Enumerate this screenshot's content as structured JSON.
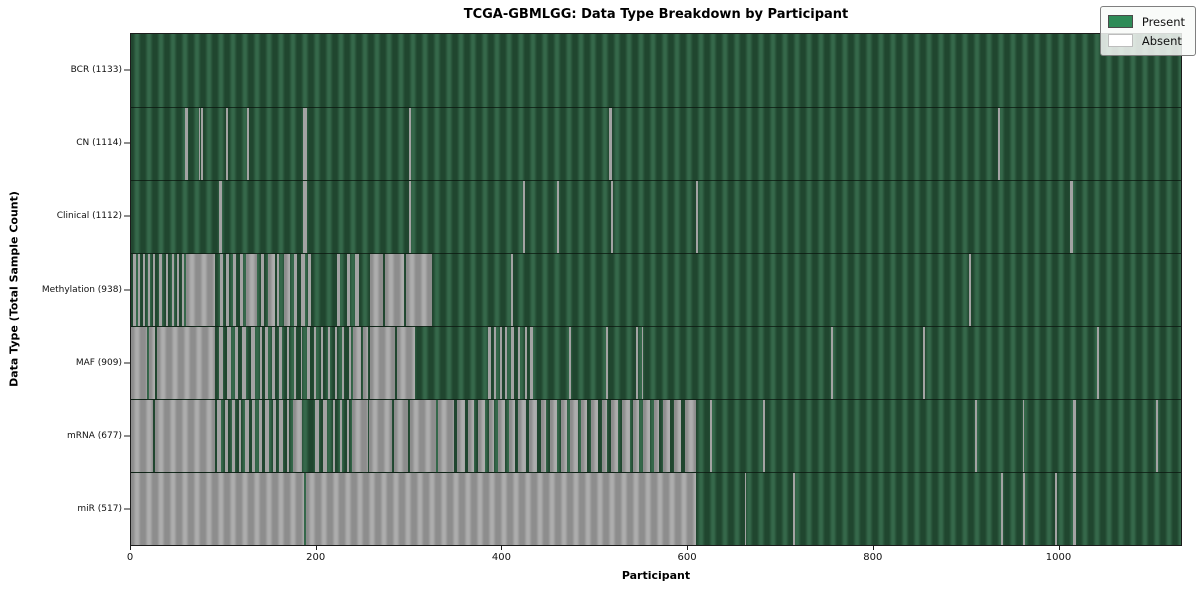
{
  "title": "TCGA-GBMLGG: Data Type Breakdown by Participant",
  "axes": {
    "x_label": "Participant",
    "y_label": "Data Type (Total Sample Count)"
  },
  "legend": {
    "items": [
      {
        "label": "Present",
        "color": "#2e8b57"
      },
      {
        "label": "Absent",
        "color": "#ffffff"
      }
    ]
  },
  "chart_data": {
    "type": "heatmap",
    "title": "TCGA-GBMLGG: Data Type Breakdown by Participant",
    "xlabel": "Participant",
    "ylabel": "Data Type (Total Sample Count)",
    "x_range": [
      0,
      1133
    ],
    "x_ticks": [
      0,
      200,
      400,
      600,
      800,
      1000
    ],
    "legend_entries": [
      "Present",
      "Absent"
    ],
    "present_color": "#2e8b57",
    "absent_color": "#ffffff",
    "grid": false,
    "legend_position": "upper right",
    "rows": [
      {
        "name": "BCR",
        "label": "BCR (1133)",
        "present_count": 1133,
        "absent_runs": []
      },
      {
        "name": "CN",
        "label": "CN (1114)",
        "present_count": 1114,
        "absent_runs": [
          [
            58,
            61
          ],
          [
            73,
            75
          ],
          [
            76,
            78
          ],
          [
            103,
            105
          ],
          [
            125,
            127
          ],
          [
            186,
            190
          ],
          [
            300,
            302
          ],
          [
            516,
            519
          ],
          [
            935,
            938
          ]
        ]
      },
      {
        "name": "Clinical",
        "label": "Clinical (1112)",
        "present_count": 1112,
        "absent_runs": [
          [
            95,
            98
          ],
          [
            186,
            190
          ],
          [
            300,
            302
          ],
          [
            423,
            425
          ],
          [
            460,
            462
          ],
          [
            518,
            520
          ],
          [
            610,
            612
          ],
          [
            1013,
            1016
          ]
        ]
      },
      {
        "name": "Methylation",
        "label": "Methylation (938)",
        "present_count": 938,
        "absent_runs": [
          [
            2,
            5
          ],
          [
            8,
            10
          ],
          [
            13,
            15
          ],
          [
            18,
            20
          ],
          [
            24,
            26
          ],
          [
            30,
            33
          ],
          [
            38,
            40
          ],
          [
            44,
            46
          ],
          [
            50,
            52
          ],
          [
            55,
            57
          ],
          [
            59,
            91
          ],
          [
            96,
            99
          ],
          [
            103,
            106
          ],
          [
            110,
            113
          ],
          [
            118,
            121
          ],
          [
            124,
            136
          ],
          [
            140,
            144
          ],
          [
            148,
            155
          ],
          [
            158,
            160
          ],
          [
            165,
            172
          ],
          [
            176,
            179
          ],
          [
            183,
            188
          ],
          [
            191,
            194
          ],
          [
            222,
            226
          ],
          [
            233,
            236
          ],
          [
            242,
            246
          ],
          [
            258,
            272
          ],
          [
            274,
            295
          ],
          [
            297,
            325
          ],
          [
            410,
            412
          ],
          [
            904,
            906
          ]
        ]
      },
      {
        "name": "MAF",
        "label": "MAF (909)",
        "present_count": 909,
        "absent_runs": [
          [
            0,
            17
          ],
          [
            19,
            26
          ],
          [
            28,
            91
          ],
          [
            95,
            99
          ],
          [
            104,
            108
          ],
          [
            112,
            115
          ],
          [
            120,
            124
          ],
          [
            130,
            134
          ],
          [
            139,
            141
          ],
          [
            145,
            148
          ],
          [
            152,
            155
          ],
          [
            160,
            163
          ],
          [
            168,
            171
          ],
          [
            176,
            178
          ],
          [
            183,
            185
          ],
          [
            190,
            193
          ],
          [
            198,
            200
          ],
          [
            205,
            207
          ],
          [
            213,
            215
          ],
          [
            220,
            222
          ],
          [
            228,
            230
          ],
          [
            235,
            237
          ],
          [
            240,
            248
          ],
          [
            250,
            256
          ],
          [
            258,
            285
          ],
          [
            287,
            306
          ],
          [
            385,
            388
          ],
          [
            392,
            394
          ],
          [
            398,
            400
          ],
          [
            404,
            406
          ],
          [
            410,
            413
          ],
          [
            418,
            420
          ],
          [
            425,
            427
          ],
          [
            431,
            434
          ],
          [
            473,
            475
          ],
          [
            513,
            515
          ],
          [
            545,
            547
          ],
          [
            551,
            553
          ],
          [
            755,
            757
          ],
          [
            855,
            857
          ],
          [
            1042,
            1044
          ]
        ]
      },
      {
        "name": "mRNA",
        "label": "mRNA (677)",
        "present_count": 677,
        "absent_runs": [
          [
            0,
            24
          ],
          [
            26,
            91
          ],
          [
            93,
            97
          ],
          [
            101,
            105
          ],
          [
            109,
            112
          ],
          [
            116,
            119
          ],
          [
            123,
            127
          ],
          [
            131,
            134
          ],
          [
            138,
            141
          ],
          [
            145,
            149
          ],
          [
            153,
            156
          ],
          [
            160,
            164
          ],
          [
            168,
            171
          ],
          [
            175,
            185
          ],
          [
            199,
            203
          ],
          [
            207,
            211
          ],
          [
            218,
            220
          ],
          [
            226,
            228
          ],
          [
            233,
            235
          ],
          [
            238,
            256
          ],
          [
            257,
            282
          ],
          [
            284,
            299
          ],
          [
            301,
            329
          ],
          [
            331,
            348
          ],
          [
            352,
            360
          ],
          [
            364,
            370
          ],
          [
            374,
            382
          ],
          [
            386,
            392
          ],
          [
            396,
            404
          ],
          [
            408,
            414
          ],
          [
            418,
            426
          ],
          [
            430,
            438
          ],
          [
            442,
            448
          ],
          [
            452,
            460
          ],
          [
            464,
            470
          ],
          [
            474,
            482
          ],
          [
            486,
            492
          ],
          [
            496,
            504
          ],
          [
            508,
            514
          ],
          [
            518,
            526
          ],
          [
            530,
            538
          ],
          [
            542,
            548
          ],
          [
            552,
            560
          ],
          [
            564,
            570
          ],
          [
            574,
            582
          ],
          [
            586,
            594
          ],
          [
            598,
            610
          ],
          [
            625,
            627
          ],
          [
            682,
            684
          ],
          [
            911,
            913
          ],
          [
            962,
            964
          ],
          [
            1016,
            1020
          ],
          [
            1106,
            1108
          ]
        ]
      },
      {
        "name": "miR",
        "label": "miR (517)",
        "present_count": 517,
        "absent_runs": [
          [
            0,
            187
          ],
          [
            189,
            610
          ],
          [
            662,
            664
          ],
          [
            714,
            716
          ],
          [
            939,
            941
          ],
          [
            963,
            965
          ],
          [
            997,
            999
          ],
          [
            1016,
            1020
          ]
        ]
      }
    ]
  }
}
